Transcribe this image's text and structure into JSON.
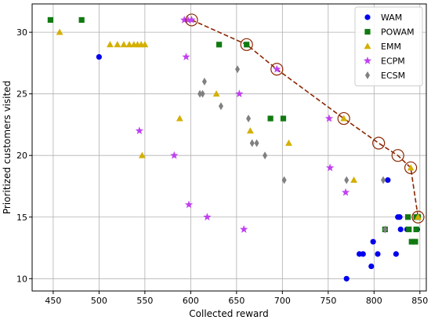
{
  "chart_data": {
    "type": "scatter",
    "xlabel": "Collected reward",
    "ylabel": "Prioritized customers visited",
    "xlim": [
      427,
      857
    ],
    "ylim": [
      9,
      32.3
    ],
    "xticks": [
      450,
      500,
      550,
      600,
      650,
      700,
      750,
      800,
      850
    ],
    "yticks": [
      10,
      15,
      20,
      25,
      30
    ],
    "grid": true,
    "legend_position": "top-right",
    "colors": {
      "WAM": "#0000ee",
      "POWAM": "#117a11",
      "EMM": "#d4af00",
      "ECPM": "#c040f0",
      "ECSM": "#808080",
      "front": "#8b2500"
    },
    "series": [
      {
        "name": "WAM",
        "marker": "circle",
        "points": [
          [
            500,
            28
          ],
          [
            770,
            10
          ],
          [
            784,
            12
          ],
          [
            788,
            12
          ],
          [
            797,
            11
          ],
          [
            799,
            13
          ],
          [
            804,
            12
          ],
          [
            815,
            18
          ],
          [
            824,
            12
          ],
          [
            826,
            15
          ],
          [
            828,
            15
          ],
          [
            829,
            14
          ],
          [
            836,
            14
          ],
          [
            847,
            14
          ]
        ]
      },
      {
        "name": "POWAM",
        "marker": "square",
        "points": [
          [
            447,
            31
          ],
          [
            481,
            31
          ],
          [
            631,
            29
          ],
          [
            661,
            29
          ],
          [
            687,
            23
          ],
          [
            701,
            23
          ],
          [
            812,
            14
          ],
          [
            837,
            15
          ],
          [
            838,
            14
          ],
          [
            841,
            13
          ],
          [
            845,
            13
          ],
          [
            846,
            15
          ],
          [
            846,
            14
          ],
          [
            848,
            15
          ]
        ]
      },
      {
        "name": "EMM",
        "marker": "triangle",
        "points": [
          [
            457,
            30
          ],
          [
            512,
            29
          ],
          [
            520,
            29
          ],
          [
            527,
            29
          ],
          [
            533,
            29
          ],
          [
            538,
            29
          ],
          [
            542,
            29
          ],
          [
            546,
            29
          ],
          [
            550,
            29
          ],
          [
            588,
            23
          ],
          [
            547,
            20
          ],
          [
            628,
            25
          ],
          [
            665,
            22
          ],
          [
            707,
            21
          ],
          [
            778,
            18
          ],
          [
            767,
            23
          ],
          [
            840,
            19
          ],
          [
            848,
            15
          ]
        ]
      },
      {
        "name": "ECPM",
        "marker": "star",
        "points": [
          [
            593,
            31
          ],
          [
            597,
            31
          ],
          [
            601,
            31
          ],
          [
            595,
            28
          ],
          [
            544,
            22
          ],
          [
            582,
            20
          ],
          [
            598,
            16
          ],
          [
            618,
            15
          ],
          [
            653,
            25
          ],
          [
            658,
            14
          ],
          [
            694,
            27
          ],
          [
            751,
            23
          ],
          [
            752,
            19
          ],
          [
            769,
            17
          ]
        ]
      },
      {
        "name": "ECSM",
        "marker": "diamond",
        "points": [
          [
            610,
            25
          ],
          [
            615,
            26
          ],
          [
            613,
            25
          ],
          [
            633,
            24
          ],
          [
            651,
            27
          ],
          [
            663,
            23
          ],
          [
            667,
            21
          ],
          [
            672,
            21
          ],
          [
            681,
            20
          ],
          [
            702,
            18
          ],
          [
            770,
            18
          ],
          [
            810,
            18
          ],
          [
            812,
            14
          ]
        ]
      }
    ],
    "pareto_front": [
      [
        601,
        31
      ],
      [
        661,
        29
      ],
      [
        694,
        27
      ],
      [
        767,
        23
      ],
      [
        805,
        21
      ],
      [
        826,
        20
      ],
      [
        840,
        19
      ],
      [
        848,
        15
      ]
    ]
  }
}
